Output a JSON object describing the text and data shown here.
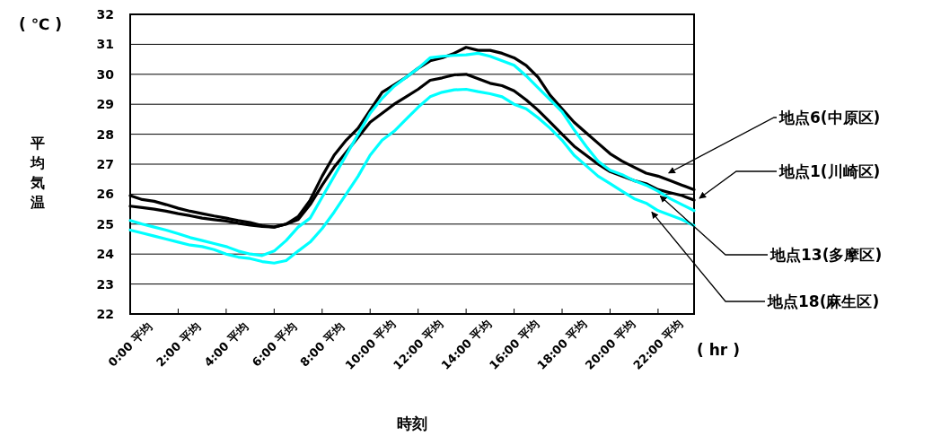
{
  "chart_data": {
    "type": "line",
    "xlabel": "時刻",
    "ylabel": "平均気温",
    "annotations": [
      "( ℃ )",
      "( hr )"
    ],
    "categories": [
      "0:00 平均",
      null,
      null,
      null,
      "2:00 平均",
      null,
      null,
      null,
      "4:00 平均",
      null,
      null,
      null,
      "6:00 平均",
      null,
      null,
      null,
      "8:00 平均",
      null,
      null,
      null,
      "10:00 平均",
      null,
      null,
      null,
      "12:00 平均",
      null,
      null,
      null,
      "14:00 平均",
      null,
      null,
      null,
      "16:00 平均",
      null,
      null,
      null,
      "18:00 平均",
      null,
      null,
      null,
      "20:00 平均",
      null,
      null,
      null,
      "22:00 平均",
      null,
      null,
      null
    ],
    "ylim": [
      22,
      32
    ],
    "yticks": [
      22,
      23,
      24,
      25,
      26,
      27,
      28,
      29,
      30,
      31,
      32
    ],
    "grid": "y",
    "legend": false,
    "marker": "none",
    "line_style": "solid",
    "series": [
      {
        "name": "地点6(中原区)",
        "color": "#000000",
        "values": [
          25.95,
          25.82,
          25.76,
          25.65,
          25.53,
          25.43,
          25.35,
          25.27,
          25.2,
          25.12,
          25.05,
          24.95,
          24.9,
          25.0,
          25.25,
          25.8,
          26.6,
          27.3,
          27.8,
          28.2,
          28.8,
          29.4,
          29.65,
          29.9,
          30.2,
          30.45,
          30.55,
          30.7,
          30.9,
          30.8,
          30.8,
          30.7,
          30.55,
          30.3,
          29.9,
          29.3,
          28.85,
          28.4,
          28.05,
          27.7,
          27.35,
          27.1,
          26.9,
          26.7,
          26.6,
          26.45,
          26.3,
          26.15
        ]
      },
      {
        "name": "地点1(川崎区)",
        "color": "#000000",
        "values": [
          25.6,
          25.55,
          25.5,
          25.43,
          25.35,
          25.28,
          25.2,
          25.15,
          25.1,
          25.03,
          24.97,
          24.92,
          24.9,
          25.0,
          25.15,
          25.65,
          26.3,
          26.9,
          27.4,
          27.9,
          28.4,
          28.7,
          29.0,
          29.25,
          29.5,
          29.8,
          29.88,
          29.98,
          30.0,
          29.85,
          29.7,
          29.62,
          29.45,
          29.15,
          28.8,
          28.4,
          28.0,
          27.6,
          27.3,
          27.0,
          26.75,
          26.6,
          26.45,
          26.35,
          26.15,
          26.05,
          25.95,
          25.8
        ]
      },
      {
        "name": "地点13(多摩区)",
        "color": "#00ffff",
        "values": [
          25.12,
          25.0,
          24.9,
          24.8,
          24.68,
          24.55,
          24.45,
          24.35,
          24.25,
          24.1,
          24.0,
          23.95,
          24.1,
          24.45,
          24.9,
          25.2,
          25.9,
          26.6,
          27.3,
          28.0,
          28.7,
          29.2,
          29.6,
          29.9,
          30.2,
          30.55,
          30.6,
          30.63,
          30.65,
          30.7,
          30.6,
          30.45,
          30.3,
          29.95,
          29.55,
          29.15,
          28.75,
          28.15,
          27.6,
          27.1,
          26.8,
          26.65,
          26.45,
          26.3,
          26.1,
          25.85,
          25.65,
          25.45
        ]
      },
      {
        "name": "地点18(麻生区)",
        "color": "#00ffff",
        "values": [
          24.8,
          24.7,
          24.6,
          24.5,
          24.4,
          24.3,
          24.25,
          24.15,
          24.0,
          23.9,
          23.85,
          23.75,
          23.7,
          23.78,
          24.1,
          24.4,
          24.85,
          25.4,
          26.0,
          26.6,
          27.3,
          27.8,
          28.1,
          28.5,
          28.9,
          29.25,
          29.4,
          29.48,
          29.5,
          29.42,
          29.35,
          29.25,
          29.0,
          28.85,
          28.55,
          28.2,
          27.8,
          27.3,
          26.95,
          26.6,
          26.35,
          26.1,
          25.85,
          25.7,
          25.45,
          25.3,
          25.15,
          24.95
        ]
      }
    ]
  }
}
